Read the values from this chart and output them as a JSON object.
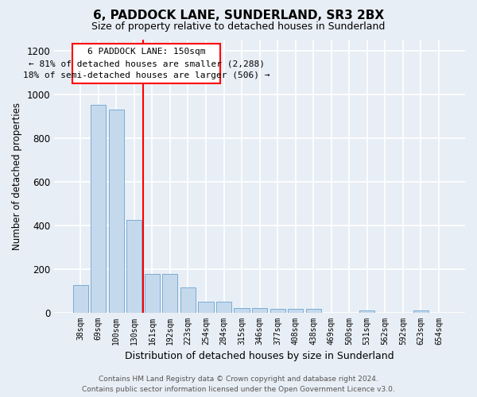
{
  "title": "6, PADDOCK LANE, SUNDERLAND, SR3 2BX",
  "subtitle": "Size of property relative to detached houses in Sunderland",
  "xlabel": "Distribution of detached houses by size in Sunderland",
  "ylabel": "Number of detached properties",
  "categories": [
    "38sqm",
    "69sqm",
    "100sqm",
    "130sqm",
    "161sqm",
    "192sqm",
    "223sqm",
    "254sqm",
    "284sqm",
    "315sqm",
    "346sqm",
    "377sqm",
    "408sqm",
    "438sqm",
    "469sqm",
    "500sqm",
    "531sqm",
    "562sqm",
    "592sqm",
    "623sqm",
    "654sqm"
  ],
  "values": [
    125,
    950,
    930,
    425,
    178,
    178,
    115,
    48,
    48,
    20,
    20,
    15,
    15,
    15,
    0,
    0,
    10,
    0,
    0,
    10,
    0
  ],
  "bar_color": "#c5d9ed",
  "bar_edge_color": "#7aadd4",
  "background_color": "#e8eef5",
  "grid_color": "#ffffff",
  "annotation_line1": "6 PADDOCK LANE: 150sqm",
  "annotation_line2": "← 81% of detached houses are smaller (2,288)",
  "annotation_line3": "18% of semi-detached houses are larger (506) →",
  "red_line_x": 3.5,
  "ylim": [
    0,
    1250
  ],
  "yticks": [
    0,
    200,
    400,
    600,
    800,
    1000,
    1200
  ],
  "footer": "Contains HM Land Registry data © Crown copyright and database right 2024.\nContains public sector information licensed under the Open Government Licence v3.0."
}
